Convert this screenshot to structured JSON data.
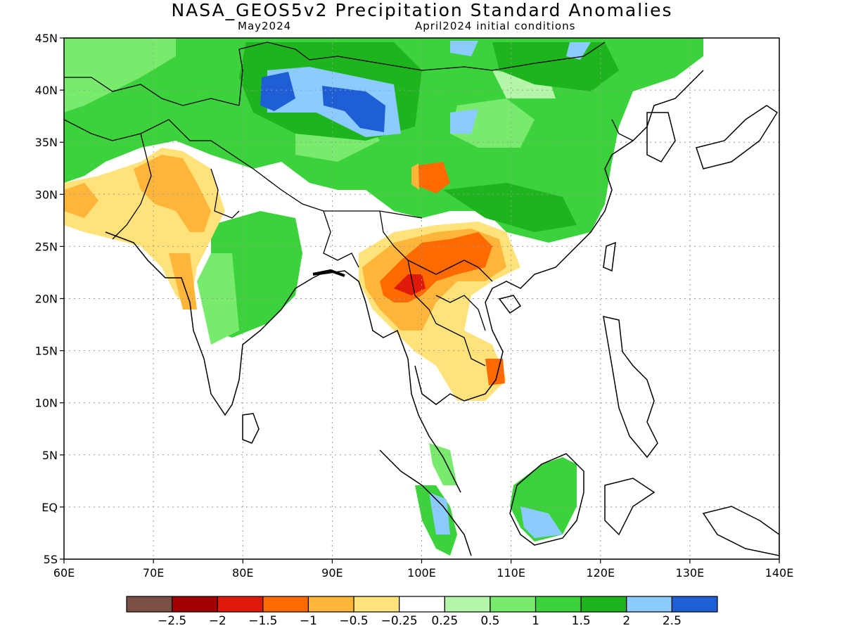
{
  "header": {
    "title": "NASA_GEOS5v2 Precipitation Standard Anomalies",
    "valid_month": "May2024",
    "init": "April2024 initial conditions"
  },
  "map": {
    "lon_range": [
      60,
      140
    ],
    "lat_range": [
      -5,
      45
    ],
    "lon_ticks": [
      "60E",
      "70E",
      "80E",
      "90E",
      "100E",
      "110E",
      "120E",
      "130E",
      "140E"
    ],
    "lat_ticks": [
      "45N",
      "40N",
      "35N",
      "30N",
      "25N",
      "20N",
      "15N",
      "10N",
      "5N",
      "EQ",
      "5S"
    ],
    "colors": {
      "land_outline": "#000000",
      "grid": "#9a9a9a"
    }
  },
  "colorbar": {
    "colors": [
      "#7a5045",
      "#a30000",
      "#e01a0a",
      "#ff6a00",
      "#ffb43a",
      "#ffe37a",
      "#ffffff",
      "#b4f5aa",
      "#78eb6e",
      "#3cd23c",
      "#1eb41e",
      "#8ccbff",
      "#1f5fd6"
    ],
    "labels": [
      "−2.5",
      "−2",
      "−1.5",
      "−1",
      "−0.5",
      "−0.25",
      "0.25",
      "0.5",
      "1",
      "1.5",
      "2",
      "2.5"
    ]
  },
  "anomaly_regions": [
    {
      "name": "mongolia-wet-core",
      "category": "2.5",
      "lon": [
        84,
        98
      ],
      "lat": [
        36,
        42
      ]
    },
    {
      "name": "tibet-dry-spot",
      "category": "-1",
      "lon": [
        99,
        101
      ],
      "lat": [
        30,
        33
      ]
    },
    {
      "name": "indochina-dry-core",
      "category": "-1.5",
      "lon": [
        94,
        108
      ],
      "lat": [
        17,
        26
      ]
    },
    {
      "name": "vietnam-dry-coast",
      "category": "-1.5",
      "lon": [
        107,
        109
      ],
      "lat": [
        11,
        14
      ]
    },
    {
      "name": "pakistan-dry",
      "category": "-0.5",
      "lon": [
        64,
        80
      ],
      "lat": [
        17,
        33
      ]
    },
    {
      "name": "borneo-wet",
      "category": "1.5",
      "lon": [
        110,
        118
      ],
      "lat": [
        -3,
        4
      ]
    }
  ]
}
